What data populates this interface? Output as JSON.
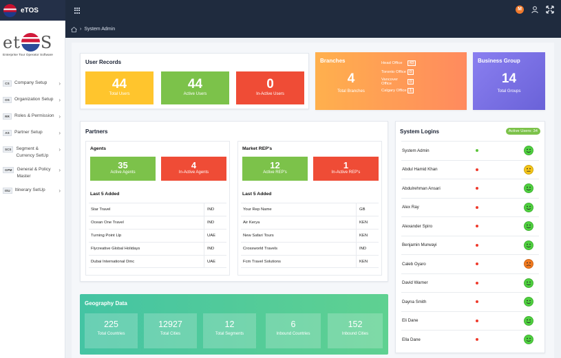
{
  "app": {
    "title": "eTOS"
  },
  "colors": {
    "topbar": "#1f2b3e",
    "yellow": "#ffc52d",
    "green": "#7cc24a",
    "red": "#ef4c36",
    "orange": "#ff8f5c",
    "purple": "#7b6fe0",
    "geo": "#4fc99b"
  },
  "breadcrumb": {
    "home_icon": "home-icon",
    "current": "System Admin"
  },
  "logo": {
    "word_left": "et",
    "word_right": "S",
    "tagline": "Enterprise Tour Operator Software"
  },
  "sidebar": {
    "items": [
      {
        "tag": "CS",
        "label": "Company Setup"
      },
      {
        "tag": "OS",
        "label": "Organization Setup"
      },
      {
        "tag": "RR",
        "label": "Roles & Permission"
      },
      {
        "tag": "AS",
        "label": "Partner Setup"
      },
      {
        "tag": "SCS",
        "label": "Segment & Currency SetUp"
      },
      {
        "tag": "GPM",
        "label": "General & Policy Master"
      },
      {
        "tag": "ISU",
        "label": "Itinerary SetUp"
      }
    ]
  },
  "user_records": {
    "title": "User Records",
    "total": {
      "value": "44",
      "label": "Total Users"
    },
    "active": {
      "value": "44",
      "label": "Active Users"
    },
    "inactive": {
      "value": "0",
      "label": "In-Active Users"
    }
  },
  "branches": {
    "title": "Branches",
    "total": {
      "value": "4",
      "label": "Total Branches"
    },
    "offices": [
      {
        "name": "Head Office",
        "count": "43"
      },
      {
        "name": "Toronto Office",
        "count": "0"
      },
      {
        "name": "Vancover Office",
        "count": "0"
      },
      {
        "name": "Calgary Office",
        "count": "1"
      }
    ]
  },
  "business_group": {
    "title": "Business Group",
    "value": "14",
    "label": "Total Groups"
  },
  "partners": {
    "title": "Partners",
    "agents": {
      "title": "Agents",
      "active": {
        "value": "35",
        "label": "Active Agents"
      },
      "inactive": {
        "value": "4",
        "label": "In-Active Agents"
      },
      "last_title": "Last 5 Added",
      "rows": [
        {
          "name": "Star Travel",
          "code": "IND"
        },
        {
          "name": "Ocean One Travel",
          "code": "IND"
        },
        {
          "name": "Turning Point Llp",
          "code": "UAE"
        },
        {
          "name": "Flycreative Global Holidays",
          "code": "IND"
        },
        {
          "name": "Dubai International Dmc",
          "code": "UAE"
        }
      ]
    },
    "reps": {
      "title": "Market REP's",
      "active": {
        "value": "12",
        "label": "Active REP's"
      },
      "inactive": {
        "value": "1",
        "label": "In-Active REP's"
      },
      "last_title": "Last 5 Added",
      "rows": [
        {
          "name": "Your Rep Name",
          "code": "GB"
        },
        {
          "name": "Air Kerya",
          "code": "KEN"
        },
        {
          "name": "New Safari Tours",
          "code": "KEN"
        },
        {
          "name": "Crossworld Travels",
          "code": "IND"
        },
        {
          "name": "Fcm Travel Solutions",
          "code": "KEN"
        }
      ]
    }
  },
  "system_logins": {
    "title": "System Logins",
    "badge": "Active Users: 34",
    "rows": [
      {
        "name": "System Admin",
        "status": "online",
        "mood": "happy"
      },
      {
        "name": "Abdul Hamid Khan",
        "status": "offline",
        "mood": "neutral"
      },
      {
        "name": "Abdulrehman Ansari",
        "status": "offline",
        "mood": "happy"
      },
      {
        "name": "Alex Ray",
        "status": "offline",
        "mood": "happy"
      },
      {
        "name": "Alexander Spiro",
        "status": "offline",
        "mood": "happy"
      },
      {
        "name": "Benjamin Murwayi",
        "status": "offline",
        "mood": "happy"
      },
      {
        "name": "Caleb Oyaro",
        "status": "offline",
        "mood": "sad"
      },
      {
        "name": "David Warner",
        "status": "offline",
        "mood": "happy"
      },
      {
        "name": "Dayna Smith",
        "status": "offline",
        "mood": "happy"
      },
      {
        "name": "Eli Dane",
        "status": "offline",
        "mood": "happy"
      },
      {
        "name": "Ella Dane",
        "status": "offline",
        "mood": "happy"
      }
    ]
  },
  "geography": {
    "title": "Geography Data",
    "items": [
      {
        "value": "225",
        "label": "Total Countries"
      },
      {
        "value": "12927",
        "label": "Total Cities"
      },
      {
        "value": "12",
        "label": "Total Segments"
      },
      {
        "value": "6",
        "label": "Inbound Countries"
      },
      {
        "value": "152",
        "label": "Inbound Cities"
      }
    ]
  }
}
